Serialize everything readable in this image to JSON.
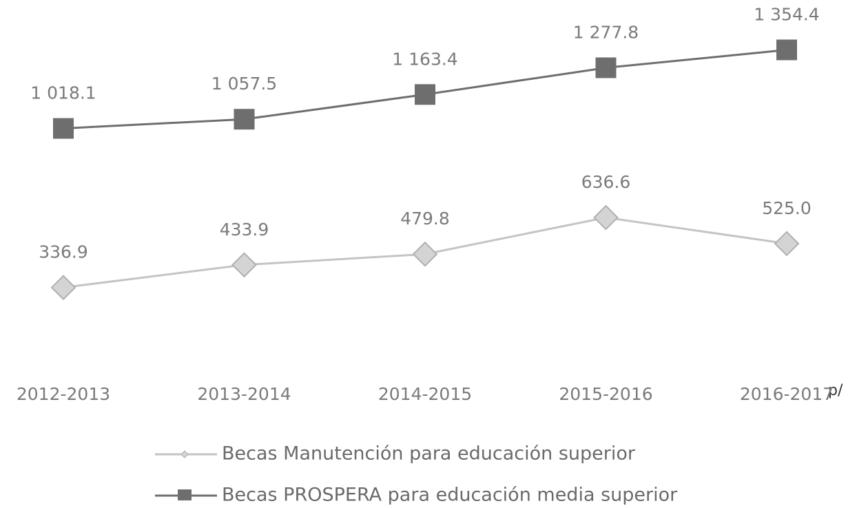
{
  "chart_data": {
    "type": "line",
    "categories": [
      "2012-2013",
      "2013-2014",
      "2014-2015",
      "2015-2016",
      "2016-2017"
    ],
    "category_note": "p/",
    "ylim": [
      0,
      1400
    ],
    "series": [
      {
        "name": "Becas Manutención para educación superior",
        "color": "#c4c4c4",
        "marker": "diamond",
        "values": [
          336.9,
          433.9,
          479.8,
          636.6,
          525.0
        ],
        "value_labels": [
          "336.9",
          "433.9",
          "479.8",
          "636.6",
          "525.0"
        ]
      },
      {
        "name": "Becas PROSPERA para educación media superior",
        "color": "#6e6e6e",
        "marker": "square",
        "values": [
          1018.1,
          1057.5,
          1163.4,
          1277.8,
          1354.4
        ],
        "value_labels": [
          "1 018.1",
          "1 057.5",
          "1 163.4",
          "1 277.8",
          "1 354.4"
        ]
      }
    ]
  }
}
